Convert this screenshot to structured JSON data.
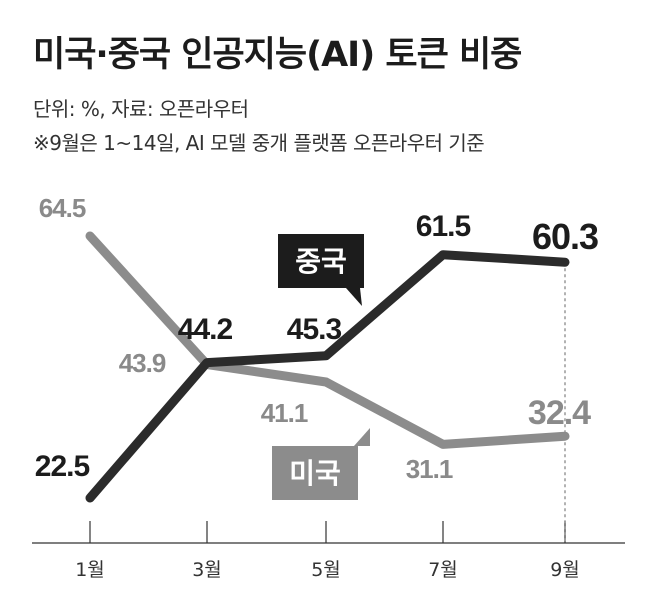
{
  "header": {
    "title": "미국·중국 인공지능(AI) 토큰 비중",
    "unit_source": "단위: %, 자료: 오픈라우터",
    "note": "※9월은 1~14일, AI 모델 중개 플랫폼 오픈라우터 기준"
  },
  "chart_data": {
    "type": "line",
    "title": "미국·중국 인공지능(AI) 토큰 비중",
    "categories": [
      "1월",
      "3월",
      "5월",
      "7월",
      "9월"
    ],
    "series": [
      {
        "name": "중국",
        "values": [
          22.5,
          44.2,
          45.3,
          61.5,
          60.3
        ],
        "color": "#2b2b2b"
      },
      {
        "name": "미국",
        "values": [
          64.5,
          43.9,
          41.1,
          31.1,
          32.4
        ],
        "color": "#8c8c8c"
      }
    ],
    "ylim": [
      15,
      70
    ],
    "legend": "inline-labels",
    "grid": false
  }
}
